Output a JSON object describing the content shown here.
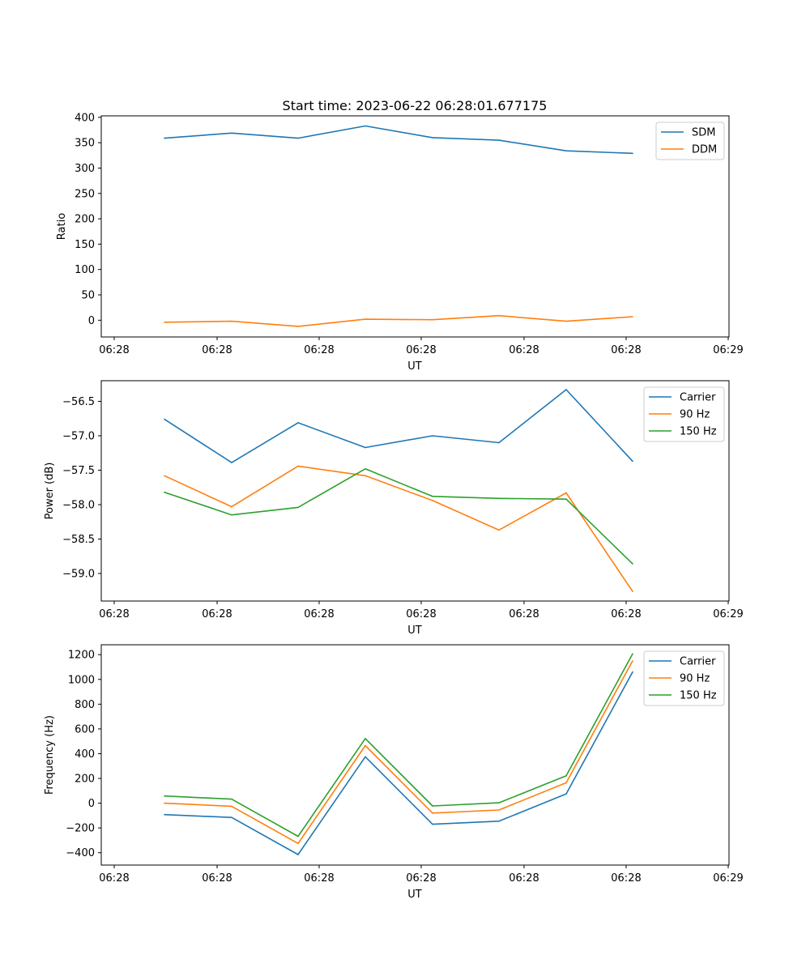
{
  "figure": {
    "title": "Start time: 2023-06-22 06:28:01.677175"
  },
  "chart_data": [
    {
      "type": "line",
      "title": "Start time: 2023-06-22 06:28:01.677175",
      "xlabel": "UT",
      "ylabel": "Ratio",
      "x_tick_labels": [
        "06:28",
        "06:28",
        "06:28",
        "06:28",
        "06:28",
        "06:28",
        "06:29"
      ],
      "y_ticks": [
        0,
        50,
        100,
        150,
        200,
        250,
        300,
        350,
        400
      ],
      "ylim": [
        -33,
        403
      ],
      "legend_position": "top-right",
      "grid": false,
      "series": [
        {
          "name": "SDM",
          "color": "#1f77b4",
          "values": [
            359,
            369,
            359,
            383,
            360,
            355,
            334,
            329
          ]
        },
        {
          "name": "DDM",
          "color": "#ff7f0e",
          "values": [
            -4,
            -2,
            -12,
            2,
            1,
            9,
            -2,
            7
          ]
        }
      ]
    },
    {
      "type": "line",
      "xlabel": "UT",
      "ylabel": "Power (dB)",
      "x_tick_labels": [
        "06:28",
        "06:28",
        "06:28",
        "06:28",
        "06:28",
        "06:28",
        "06:29"
      ],
      "y_ticks": [
        -59.0,
        -58.5,
        -58.0,
        -57.5,
        -57.0,
        -56.5
      ],
      "y_tick_labels": [
        "−59.0",
        "−58.5",
        "−58.0",
        "−57.5",
        "−57.0",
        "−56.5"
      ],
      "ylim": [
        -59.4,
        -56.2
      ],
      "legend_position": "top-right",
      "grid": false,
      "series": [
        {
          "name": "Carrier",
          "color": "#1f77b4",
          "values": [
            -56.76,
            -57.39,
            -56.81,
            -57.17,
            -57.0,
            -57.1,
            -56.33,
            -57.37
          ]
        },
        {
          "name": "90 Hz",
          "color": "#ff7f0e",
          "values": [
            -57.58,
            -58.03,
            -57.44,
            -57.58,
            -57.94,
            -58.37,
            -57.83,
            -59.26
          ]
        },
        {
          "name": "150 Hz",
          "color": "#2ca02c",
          "values": [
            -57.82,
            -58.15,
            -58.04,
            -57.48,
            -57.88,
            -57.91,
            -57.92,
            -58.86
          ]
        }
      ]
    },
    {
      "type": "line",
      "xlabel": "UT",
      "ylabel": "Frequency (Hz)",
      "x_tick_labels": [
        "06:28",
        "06:28",
        "06:28",
        "06:28",
        "06:28",
        "06:28",
        "06:29"
      ],
      "y_ticks": [
        -400,
        -200,
        0,
        200,
        400,
        600,
        800,
        1000,
        1200
      ],
      "y_tick_labels": [
        "−400",
        "−200",
        "0",
        "200",
        "400",
        "600",
        "800",
        "1000",
        "1200"
      ],
      "ylim": [
        -500,
        1280
      ],
      "legend_position": "top-right",
      "grid": false,
      "series": [
        {
          "name": "Carrier",
          "color": "#1f77b4",
          "values": [
            -92,
            -115,
            -415,
            375,
            -170,
            -145,
            75,
            1060
          ]
        },
        {
          "name": "90 Hz",
          "color": "#ff7f0e",
          "values": [
            0,
            -25,
            -325,
            465,
            -80,
            -55,
            165,
            1150
          ]
        },
        {
          "name": "150 Hz",
          "color": "#2ca02c",
          "values": [
            58,
            33,
            -268,
            522,
            -22,
            3,
            222,
            1207
          ]
        }
      ]
    }
  ]
}
